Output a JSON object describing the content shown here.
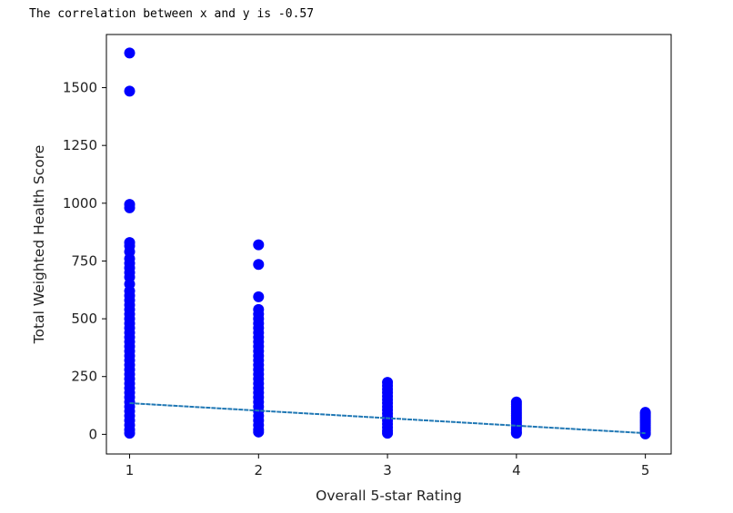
{
  "output": {
    "text": "The correlation between x and y is -0.57"
  },
  "colors": {
    "points": "#0000ff",
    "trend": "#1f77b4",
    "axes": "#000000",
    "text": "#222222"
  },
  "chart_data": {
    "type": "scatter",
    "title": "",
    "xlabel": "Overall 5-star Rating",
    "ylabel": "Total Weighted Health Score",
    "xlim": [
      0.82,
      5.2
    ],
    "ylim": [
      -85,
      1730
    ],
    "xticks": [
      1,
      2,
      3,
      4,
      5
    ],
    "yticks": [
      0,
      250,
      500,
      750,
      1000,
      1250,
      1500
    ],
    "grid": false,
    "legend": "none",
    "series": [
      {
        "rating": 1,
        "points": [
          1650,
          1485,
          995,
          980,
          830,
          815,
          790,
          760,
          740,
          720,
          700,
          680,
          650,
          620,
          600,
          580,
          560,
          540,
          520,
          500,
          480,
          460,
          440,
          420,
          400,
          380,
          360,
          340,
          320,
          300,
          280,
          260,
          240,
          220,
          200,
          180,
          160,
          140,
          120,
          100,
          80,
          60,
          40,
          20,
          5
        ]
      },
      {
        "rating": 2,
        "points": [
          820,
          735,
          595,
          540,
          520,
          500,
          480,
          460,
          440,
          420,
          400,
          380,
          360,
          340,
          320,
          300,
          280,
          260,
          240,
          220,
          200,
          180,
          160,
          140,
          120,
          100,
          80,
          60,
          40,
          20,
          10
        ]
      },
      {
        "rating": 3,
        "points": [
          225,
          210,
          195,
          180,
          165,
          150,
          135,
          120,
          105,
          90,
          75,
          60,
          45,
          30,
          15,
          5
        ]
      },
      {
        "rating": 4,
        "points": [
          140,
          130,
          120,
          110,
          100,
          90,
          80,
          70,
          60,
          50,
          40,
          30,
          20,
          10,
          5
        ]
      },
      {
        "rating": 5,
        "points": [
          95,
          88,
          80,
          72,
          64,
          56,
          48,
          40,
          32,
          24,
          16,
          8,
          2
        ]
      }
    ],
    "trendline": {
      "x": [
        1,
        5
      ],
      "y": [
        135,
        5
      ]
    }
  }
}
